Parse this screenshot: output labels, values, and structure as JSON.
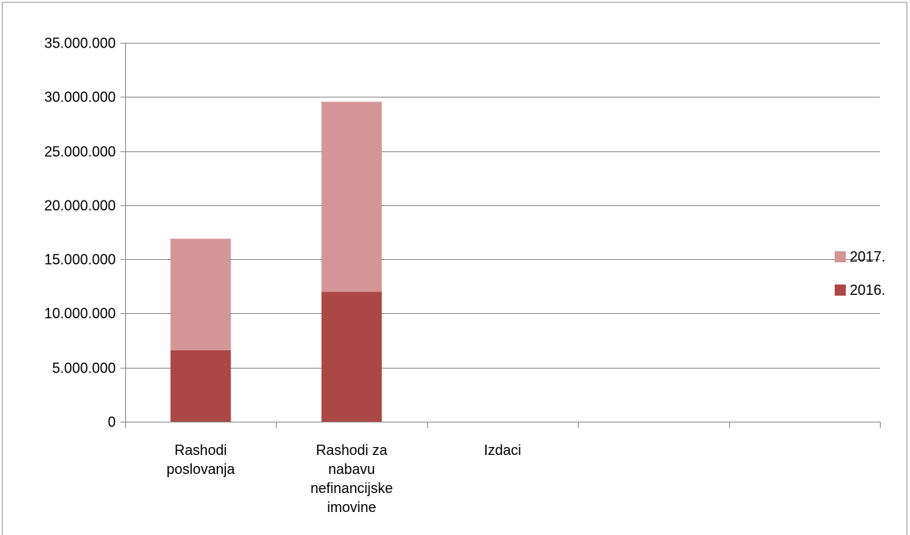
{
  "chart_data": {
    "type": "bar",
    "stacked": true,
    "categories": [
      [
        "Rashodi",
        "poslovanja"
      ],
      [
        "Rashodi za",
        "nabavu",
        "nefinancijske",
        "imovine"
      ],
      [
        "Izdaci"
      ],
      [
        ""
      ],
      [
        ""
      ]
    ],
    "series": [
      {
        "name": "2016.",
        "values": [
          6600000,
          12000000,
          0,
          0,
          0
        ],
        "color": "#ab4744"
      },
      {
        "name": "2017.",
        "values": [
          10300000,
          17550000,
          0,
          0,
          0
        ],
        "color": "#d39595"
      }
    ],
    "ylim": [
      0,
      35000000
    ],
    "yticks": [
      0,
      5000000,
      10000000,
      15000000,
      20000000,
      25000000,
      30000000,
      35000000
    ],
    "ytick_labels": [
      "0",
      "5.000.000",
      "10.000.000",
      "15.000.000",
      "20.000.000",
      "25.000.000",
      "30.000.000",
      "35.000.000"
    ],
    "grid": true,
    "legend_position": "right",
    "legend_order": [
      "2017.",
      "2016."
    ],
    "title": "",
    "xlabel": "",
    "ylabel": ""
  }
}
